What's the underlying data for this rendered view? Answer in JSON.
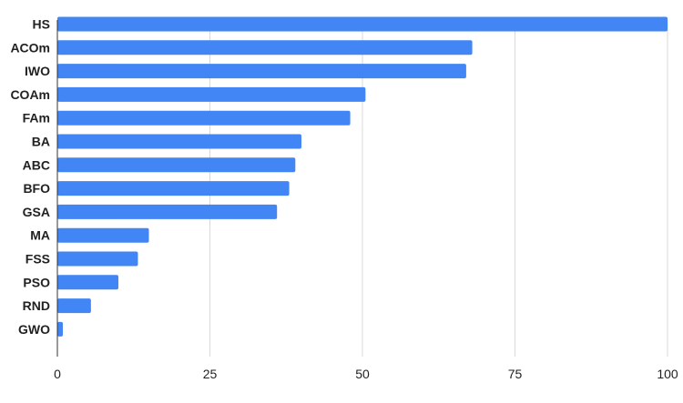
{
  "chart_data": {
    "type": "bar",
    "orientation": "horizontal",
    "categories": [
      "HS",
      "ACOm",
      "IWO",
      "COAm",
      "FAm",
      "BA",
      "ABC",
      "BFO",
      "GSA",
      "MA",
      "FSS",
      "PSO",
      "RND",
      "GWO"
    ],
    "values": [
      100,
      68,
      67,
      50.5,
      48,
      40,
      39,
      38,
      36,
      15,
      13.2,
      10,
      5.5,
      0.9
    ],
    "title": "",
    "xlabel": "",
    "ylabel": "",
    "xlim": [
      0,
      100
    ],
    "x_ticks": [
      0,
      25,
      50,
      75,
      100
    ],
    "grid": true,
    "legend": "none",
    "bar_color": "#4285f4"
  }
}
